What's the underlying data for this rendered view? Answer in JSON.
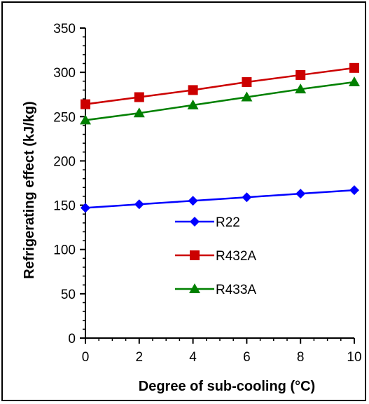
{
  "chart_data": {
    "type": "line",
    "x": [
      0,
      2,
      4,
      6,
      8,
      10
    ],
    "xlim": [
      0,
      10
    ],
    "ylim": [
      0,
      350
    ],
    "xticks": [
      0,
      2,
      4,
      6,
      8,
      10
    ],
    "yticks": [
      0,
      50,
      100,
      150,
      200,
      250,
      300,
      350
    ],
    "xlabel": "Degree of sub-cooling (°C)",
    "ylabel": "Refrigerating effect (kJ/kg)",
    "grid": false,
    "legend_position": "lower-center",
    "series": [
      {
        "name": "R22",
        "color": "#0000ff",
        "marker": "diamond",
        "values": [
          147,
          151,
          155,
          159,
          163,
          167
        ]
      },
      {
        "name": "R432A",
        "color": "#cc0000",
        "marker": "square",
        "values": [
          264,
          272,
          280,
          289,
          297,
          305
        ]
      },
      {
        "name": "R433A",
        "color": "#008000",
        "marker": "triangle",
        "values": [
          246,
          254,
          263,
          272,
          281,
          289
        ]
      }
    ]
  }
}
